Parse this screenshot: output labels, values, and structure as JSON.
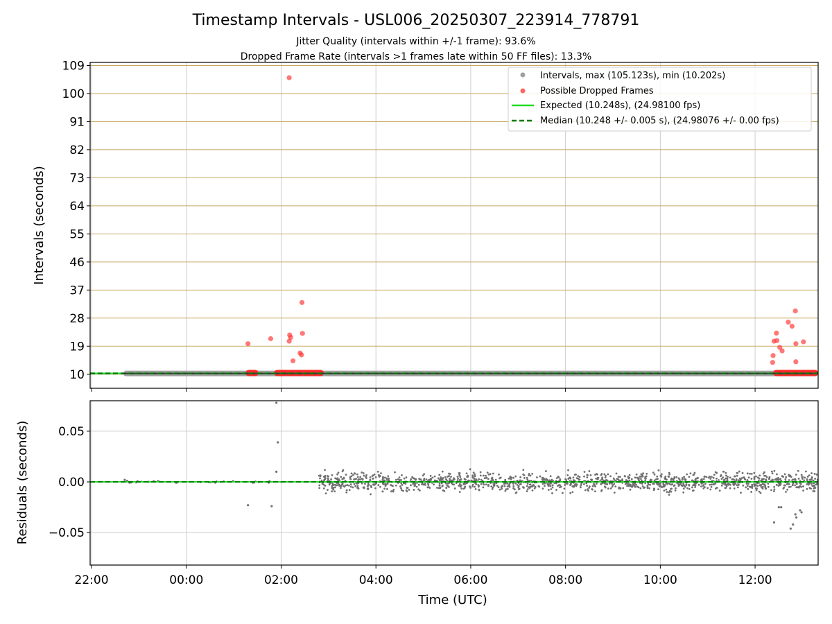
{
  "chart_data": [
    {
      "type": "scatter",
      "title": "Timestamp Intervals - USL006_20250307_223914_778791",
      "subtitle_lines": [
        "Jitter Quality (intervals within +/-1 frame): 93.6%",
        "Dropped Frame Rate (intervals >1 frames late within 50 FF files): 13.3%"
      ],
      "xlabel": "",
      "ylabel": "Intervals (seconds)",
      "x_unit": "hours since 22:00 UTC",
      "xlim": [
        -0.03,
        15.33
      ],
      "ylim": [
        5.5,
        110
      ],
      "x_ticks": [
        0,
        2,
        4,
        6,
        8,
        10,
        12,
        14
      ],
      "y_ticks": [
        10,
        19,
        28,
        37,
        46,
        55,
        64,
        73,
        82,
        91,
        100,
        109
      ],
      "grid": {
        "vertical": true,
        "horizontal_color": "#c8a860"
      },
      "legend_position": "top-right",
      "legend": [
        {
          "label": "Intervals, max (105.123s), min (10.202s)",
          "marker": "dot",
          "color": "#a0a0a0"
        },
        {
          "label": "Possible Dropped Frames",
          "marker": "dot",
          "color": "#ff4040"
        },
        {
          "label": "Expected (10.248s), (24.98100 fps)",
          "marker": "solid-line",
          "color": "#22dd22"
        },
        {
          "label": "Median (10.248 +/- 0.005 s), (24.98076 +/- 0.00 fps)",
          "marker": "dashed-line",
          "color": "#007a00"
        }
      ],
      "series": [
        {
          "name": "Intervals, max (105.123s), min (10.202s)",
          "x_range": [
            0.67,
            15.33
          ],
          "y": 10.248
        },
        {
          "name": "Expected (10.248s), (24.98100 fps)",
          "y": 10.248
        },
        {
          "name": "Median (10.248 +/- 0.005 s), (24.98076 +/- 0.00 fps)",
          "y": 10.248
        },
        {
          "name": "Possible Dropped Frames",
          "x": [
            3.3,
            3.78,
            4.17,
            4.18,
            4.2,
            4.17,
            4.25,
            4.4,
            4.43,
            4.45,
            4.44,
            14.37,
            14.38,
            14.4,
            14.45,
            14.46,
            14.52,
            14.57,
            14.7,
            14.78,
            14.85,
            14.86,
            14.86,
            15.02
          ],
          "y": [
            19.8,
            21.4,
            105.1,
            22.6,
            21.8,
            20.6,
            14.3,
            16.8,
            16.2,
            23.1,
            33.0,
            13.8,
            16.0,
            20.6,
            23.2,
            20.8,
            18.6,
            17.5,
            26.7,
            25.4,
            30.3,
            19.8,
            14.0,
            20.4
          ]
        },
        {
          "name": "dropped-frame-runs",
          "x_ranges": [
            [
              3.25,
              3.52
            ],
            [
              3.85,
              4.9
            ],
            [
              14.38,
              15.33
            ]
          ],
          "y": 10.4
        }
      ]
    },
    {
      "type": "scatter",
      "title": "",
      "xlabel": "Time (UTC)",
      "ylabel": "Residuals (seconds)",
      "x_unit": "hours since 22:00 UTC",
      "xlim": [
        -0.03,
        15.33
      ],
      "ylim": [
        -0.082,
        0.08
      ],
      "x_ticks": [
        0,
        2,
        4,
        6,
        8,
        10,
        12,
        14
      ],
      "x_tick_labels": [
        "22:00",
        "00:00",
        "02:00",
        "04:00",
        "06:00",
        "08:00",
        "10:00",
        "12:00"
      ],
      "y_ticks": [
        -0.05,
        0.0,
        0.05
      ],
      "y_tick_labels": [
        "−0.05",
        "0.00",
        "0.05"
      ],
      "grid": true,
      "zero_line": 0.0,
      "series": [
        {
          "name": "residuals",
          "x_range": [
            4.8,
            15.33
          ],
          "spread": 0.0045,
          "color": "#707070"
        },
        {
          "name": "residual-outliers",
          "x": [
            0.7,
            0.75,
            3.3,
            3.8,
            3.9,
            3.93,
            3.9,
            14.4,
            14.5,
            14.55,
            14.75,
            14.8,
            14.85,
            14.87,
            14.95,
            14.98
          ],
          "y": [
            0.002,
            0.001,
            -0.023,
            -0.024,
            0.01,
            0.039,
            0.078,
            -0.04,
            -0.025,
            -0.025,
            -0.046,
            -0.042,
            -0.032,
            -0.035,
            -0.028,
            -0.03
          ]
        }
      ]
    }
  ]
}
